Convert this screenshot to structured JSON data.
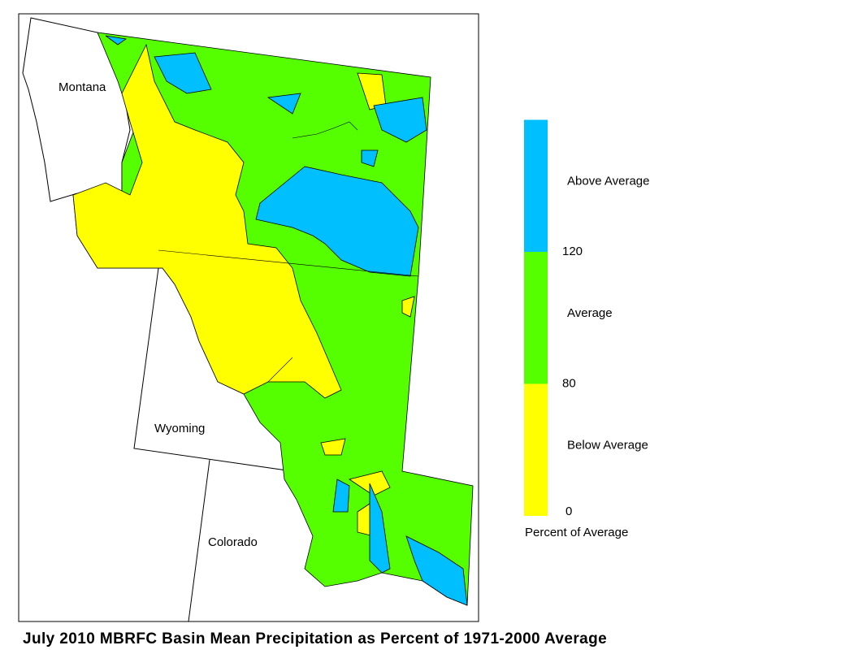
{
  "title": "July 2010 MBRFC Basin Mean Precipitation as Percent of 1971-2000 Average",
  "map": {
    "state_labels": [
      "Montana",
      "Wyoming",
      "Colorado"
    ]
  },
  "legend": {
    "title": "Percent of Average",
    "classes": [
      {
        "label": "Below Average",
        "color": "#ffff00"
      },
      {
        "label": "Average",
        "color": "#55ff00"
      },
      {
        "label": "Above Average",
        "color": "#00bfff"
      }
    ],
    "ticks": [
      0,
      80,
      120
    ]
  }
}
